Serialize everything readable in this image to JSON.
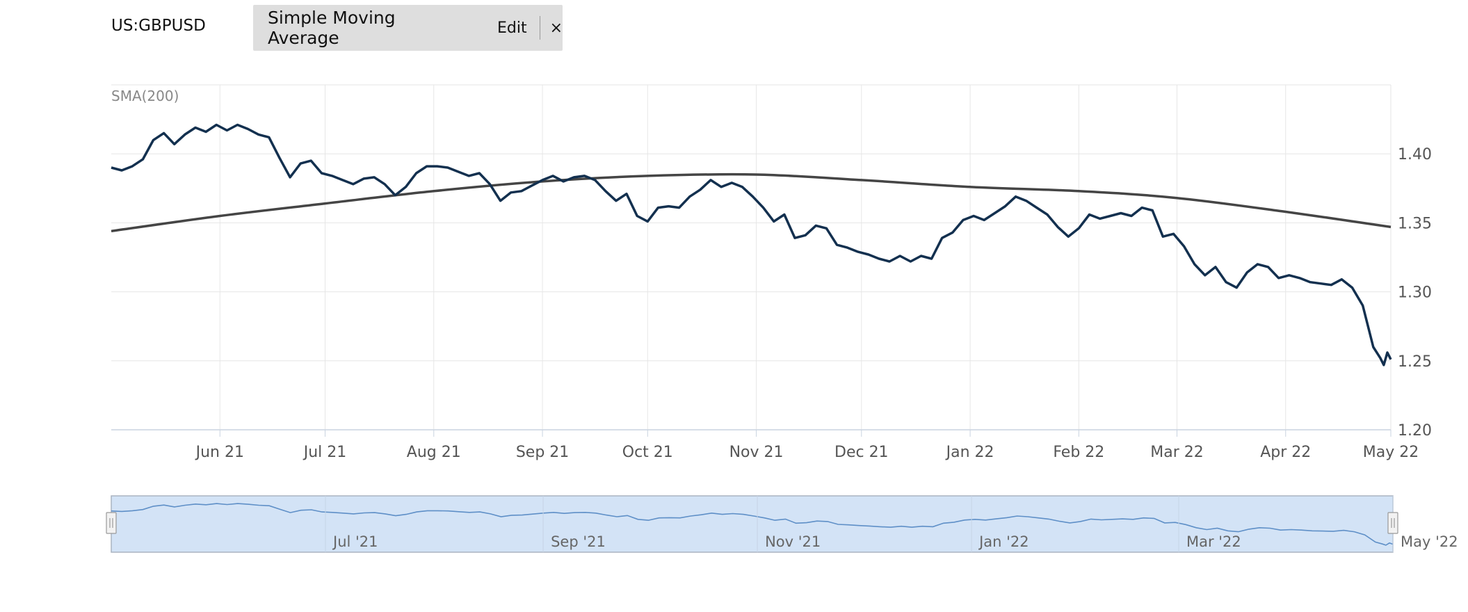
{
  "header": {
    "symbol": "US:GBPUSD",
    "indicator": {
      "name": "Simple Moving Average",
      "edit_label": "Edit",
      "close_label": "×"
    }
  },
  "colors": {
    "price_line": "#13304f",
    "sma_line": "#454545",
    "grid": "#e6e6e6",
    "axis": "#c9d3e0",
    "navigator_fill": "#d3e3f6",
    "navigator_border": "#aab4c0",
    "navigator_line": "#5e8fc7"
  },
  "chart_data": {
    "type": "line",
    "indicator_label": "SMA(200)",
    "x_range": [
      "2021-05-01",
      "2022-05-01"
    ],
    "ylim": [
      1.2,
      1.45
    ],
    "y_ticks": [
      1.2,
      1.25,
      1.3,
      1.35,
      1.4
    ],
    "y_tick_labels": [
      "1.20",
      "1.25",
      "1.30",
      "1.35",
      "1.40"
    ],
    "grid": true,
    "x_ticks": [
      {
        "date": "2021-06-01",
        "label": "Jun 21"
      },
      {
        "date": "2021-07-01",
        "label": "Jul 21"
      },
      {
        "date": "2021-08-01",
        "label": "Aug 21"
      },
      {
        "date": "2021-09-01",
        "label": "Sep 21"
      },
      {
        "date": "2021-10-01",
        "label": "Oct 21"
      },
      {
        "date": "2021-11-01",
        "label": "Nov 21"
      },
      {
        "date": "2021-12-01",
        "label": "Dec 21"
      },
      {
        "date": "2022-01-01",
        "label": "Jan 22"
      },
      {
        "date": "2022-02-01",
        "label": "Feb 22"
      },
      {
        "date": "2022-03-01",
        "label": "Mar 22"
      },
      {
        "date": "2022-04-01",
        "label": "Apr 22"
      },
      {
        "date": "2022-05-01",
        "label": "May 22"
      }
    ],
    "series": [
      {
        "key": "price",
        "points": [
          [
            "2021-05-01",
            1.39
          ],
          [
            "2021-05-04",
            1.388
          ],
          [
            "2021-05-07",
            1.391
          ],
          [
            "2021-05-10",
            1.396
          ],
          [
            "2021-05-13",
            1.41
          ],
          [
            "2021-05-16",
            1.415
          ],
          [
            "2021-05-19",
            1.407
          ],
          [
            "2021-05-22",
            1.414
          ],
          [
            "2021-05-25",
            1.419
          ],
          [
            "2021-05-28",
            1.416
          ],
          [
            "2021-05-31",
            1.421
          ],
          [
            "2021-06-03",
            1.417
          ],
          [
            "2021-06-06",
            1.421
          ],
          [
            "2021-06-09",
            1.418
          ],
          [
            "2021-06-12",
            1.414
          ],
          [
            "2021-06-15",
            1.412
          ],
          [
            "2021-06-18",
            1.397
          ],
          [
            "2021-06-21",
            1.383
          ],
          [
            "2021-06-24",
            1.393
          ],
          [
            "2021-06-27",
            1.395
          ],
          [
            "2021-06-30",
            1.386
          ],
          [
            "2021-07-03",
            1.384
          ],
          [
            "2021-07-06",
            1.381
          ],
          [
            "2021-07-09",
            1.378
          ],
          [
            "2021-07-12",
            1.382
          ],
          [
            "2021-07-15",
            1.383
          ],
          [
            "2021-07-18",
            1.378
          ],
          [
            "2021-07-21",
            1.37
          ],
          [
            "2021-07-24",
            1.376
          ],
          [
            "2021-07-27",
            1.386
          ],
          [
            "2021-07-30",
            1.391
          ],
          [
            "2021-08-02",
            1.391
          ],
          [
            "2021-08-05",
            1.39
          ],
          [
            "2021-08-08",
            1.387
          ],
          [
            "2021-08-11",
            1.384
          ],
          [
            "2021-08-14",
            1.386
          ],
          [
            "2021-08-17",
            1.378
          ],
          [
            "2021-08-20",
            1.366
          ],
          [
            "2021-08-23",
            1.372
          ],
          [
            "2021-08-26",
            1.373
          ],
          [
            "2021-08-29",
            1.377
          ],
          [
            "2021-09-01",
            1.381
          ],
          [
            "2021-09-04",
            1.384
          ],
          [
            "2021-09-07",
            1.38
          ],
          [
            "2021-09-10",
            1.383
          ],
          [
            "2021-09-13",
            1.384
          ],
          [
            "2021-09-16",
            1.381
          ],
          [
            "2021-09-19",
            1.373
          ],
          [
            "2021-09-22",
            1.366
          ],
          [
            "2021-09-25",
            1.371
          ],
          [
            "2021-09-28",
            1.355
          ],
          [
            "2021-10-01",
            1.351
          ],
          [
            "2021-10-04",
            1.361
          ],
          [
            "2021-10-07",
            1.362
          ],
          [
            "2021-10-10",
            1.361
          ],
          [
            "2021-10-13",
            1.369
          ],
          [
            "2021-10-16",
            1.374
          ],
          [
            "2021-10-19",
            1.381
          ],
          [
            "2021-10-22",
            1.376
          ],
          [
            "2021-10-25",
            1.379
          ],
          [
            "2021-10-28",
            1.376
          ],
          [
            "2021-10-31",
            1.369
          ],
          [
            "2021-11-03",
            1.361
          ],
          [
            "2021-11-06",
            1.351
          ],
          [
            "2021-11-09",
            1.356
          ],
          [
            "2021-11-12",
            1.339
          ],
          [
            "2021-11-15",
            1.341
          ],
          [
            "2021-11-18",
            1.348
          ],
          [
            "2021-11-21",
            1.346
          ],
          [
            "2021-11-24",
            1.334
          ],
          [
            "2021-11-27",
            1.332
          ],
          [
            "2021-11-30",
            1.329
          ],
          [
            "2021-12-03",
            1.327
          ],
          [
            "2021-12-06",
            1.324
          ],
          [
            "2021-12-09",
            1.322
          ],
          [
            "2021-12-12",
            1.326
          ],
          [
            "2021-12-15",
            1.322
          ],
          [
            "2021-12-18",
            1.326
          ],
          [
            "2021-12-21",
            1.324
          ],
          [
            "2021-12-24",
            1.339
          ],
          [
            "2021-12-27",
            1.343
          ],
          [
            "2021-12-30",
            1.352
          ],
          [
            "2022-01-02",
            1.355
          ],
          [
            "2022-01-05",
            1.352
          ],
          [
            "2022-01-08",
            1.357
          ],
          [
            "2022-01-11",
            1.362
          ],
          [
            "2022-01-14",
            1.369
          ],
          [
            "2022-01-17",
            1.366
          ],
          [
            "2022-01-20",
            1.361
          ],
          [
            "2022-01-23",
            1.356
          ],
          [
            "2022-01-26",
            1.347
          ],
          [
            "2022-01-29",
            1.34
          ],
          [
            "2022-02-01",
            1.346
          ],
          [
            "2022-02-04",
            1.356
          ],
          [
            "2022-02-07",
            1.353
          ],
          [
            "2022-02-10",
            1.355
          ],
          [
            "2022-02-13",
            1.357
          ],
          [
            "2022-02-16",
            1.355
          ],
          [
            "2022-02-19",
            1.361
          ],
          [
            "2022-02-22",
            1.359
          ],
          [
            "2022-02-25",
            1.34
          ],
          [
            "2022-02-28",
            1.342
          ],
          [
            "2022-03-03",
            1.333
          ],
          [
            "2022-03-06",
            1.32
          ],
          [
            "2022-03-09",
            1.312
          ],
          [
            "2022-03-12",
            1.318
          ],
          [
            "2022-03-15",
            1.307
          ],
          [
            "2022-03-18",
            1.303
          ],
          [
            "2022-03-21",
            1.314
          ],
          [
            "2022-03-24",
            1.32
          ],
          [
            "2022-03-27",
            1.318
          ],
          [
            "2022-03-30",
            1.31
          ],
          [
            "2022-04-02",
            1.312
          ],
          [
            "2022-04-05",
            1.31
          ],
          [
            "2022-04-08",
            1.307
          ],
          [
            "2022-04-11",
            1.306
          ],
          [
            "2022-04-14",
            1.305
          ],
          [
            "2022-04-17",
            1.309
          ],
          [
            "2022-04-20",
            1.303
          ],
          [
            "2022-04-23",
            1.29
          ],
          [
            "2022-04-26",
            1.26
          ],
          [
            "2022-04-28",
            1.252
          ],
          [
            "2022-04-29",
            1.247
          ],
          [
            "2022-04-30",
            1.256
          ],
          [
            "2022-05-01",
            1.251
          ]
        ]
      },
      {
        "key": "sma",
        "points": [
          [
            "2021-05-01",
            1.344
          ],
          [
            "2021-06-01",
            1.355
          ],
          [
            "2021-07-01",
            1.364
          ],
          [
            "2021-08-01",
            1.373
          ],
          [
            "2021-09-01",
            1.38
          ],
          [
            "2021-10-01",
            1.384
          ],
          [
            "2021-11-01",
            1.385
          ],
          [
            "2021-12-01",
            1.381
          ],
          [
            "2022-01-01",
            1.376
          ],
          [
            "2022-02-01",
            1.373
          ],
          [
            "2022-03-01",
            1.368
          ],
          [
            "2022-04-01",
            1.358
          ],
          [
            "2022-05-01",
            1.347
          ]
        ]
      }
    ],
    "navigator": {
      "x_range": [
        "2021-05-01",
        "2022-05-01"
      ],
      "x_ticks": [
        {
          "date": "2021-07-01",
          "label": "Jul '21"
        },
        {
          "date": "2021-09-01",
          "label": "Sep '21"
        },
        {
          "date": "2021-11-01",
          "label": "Nov '21"
        },
        {
          "date": "2022-01-01",
          "label": "Jan '22"
        },
        {
          "date": "2022-03-01",
          "label": "Mar '22"
        },
        {
          "date": "2022-05-01",
          "label": "May '22"
        }
      ]
    }
  }
}
